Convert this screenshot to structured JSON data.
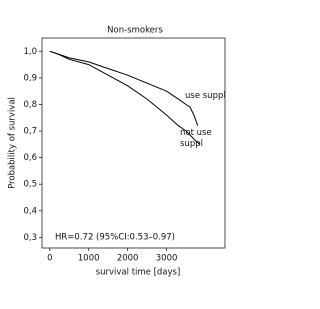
{
  "chart_data": {
    "type": "line",
    "title": "Non-smokers",
    "xlabel": "survival time [days]",
    "ylabel": "Probability of survival",
    "xlim": [
      -200,
      4500
    ],
    "ylim": [
      0.26,
      1.05
    ],
    "xticks": [
      0,
      1000,
      2000,
      3000
    ],
    "yticks": [
      {
        "value": 1.0,
        "label": "1,0"
      },
      {
        "value": 0.9,
        "label": "0,9"
      },
      {
        "value": 0.8,
        "label": "0,8"
      },
      {
        "value": 0.7,
        "label": "0,7"
      },
      {
        "value": 0.6,
        "label": "0,6"
      },
      {
        "value": 0.5,
        "label": "0,5"
      },
      {
        "value": 0.4,
        "label": "0,4"
      },
      {
        "value": 0.3,
        "label": "0,3"
      }
    ],
    "annotation": "HR=0.72 (95%CI:0.53–0.97)",
    "series": [
      {
        "name": "use suppl",
        "color": "#000000",
        "x": [
          0,
          200,
          500,
          1000,
          1500,
          2000,
          2500,
          3000,
          3300,
          3500,
          3600,
          3700,
          3800
        ],
        "values": [
          1.0,
          0.99,
          0.975,
          0.96,
          0.935,
          0.91,
          0.88,
          0.85,
          0.82,
          0.8,
          0.79,
          0.76,
          0.72
        ]
      },
      {
        "name": "not use suppl",
        "color": "#000000",
        "x": [
          0,
          200,
          500,
          1000,
          1500,
          2000,
          2500,
          3000,
          3300,
          3500,
          3700,
          3850
        ],
        "values": [
          1.0,
          0.99,
          0.97,
          0.95,
          0.91,
          0.87,
          0.82,
          0.76,
          0.72,
          0.7,
          0.67,
          0.65
        ]
      }
    ]
  }
}
